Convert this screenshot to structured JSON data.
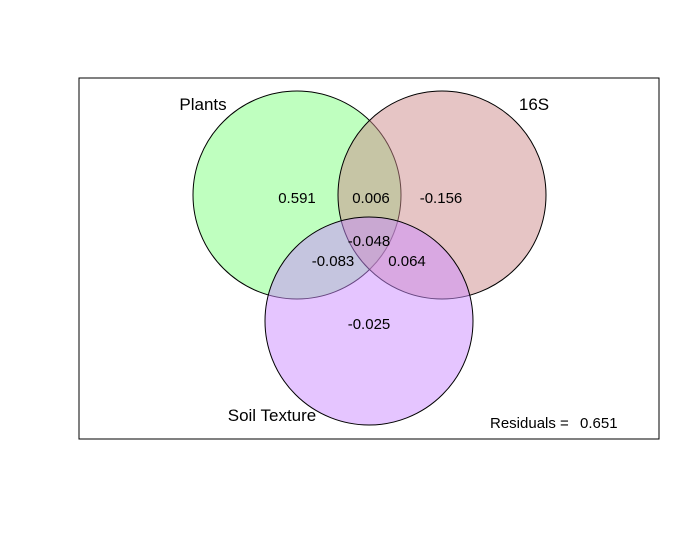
{
  "figure": {
    "type": "venn",
    "sets": [
      {
        "name": "Plants",
        "color": "#7fff7f"
      },
      {
        "name": "16S",
        "color": "#cd8c8c"
      },
      {
        "name": "Soil Texture",
        "color": "#cc8cff"
      }
    ],
    "regions": {
      "plants_only": "0.591",
      "s16_only": "-0.156",
      "soil_only": "-0.025",
      "plants_s16": "0.006",
      "plants_soil": "-0.083",
      "s16_soil": "0.064",
      "all_three": "-0.048"
    },
    "residuals": {
      "label": "Residuals =",
      "value": "0.651"
    }
  }
}
